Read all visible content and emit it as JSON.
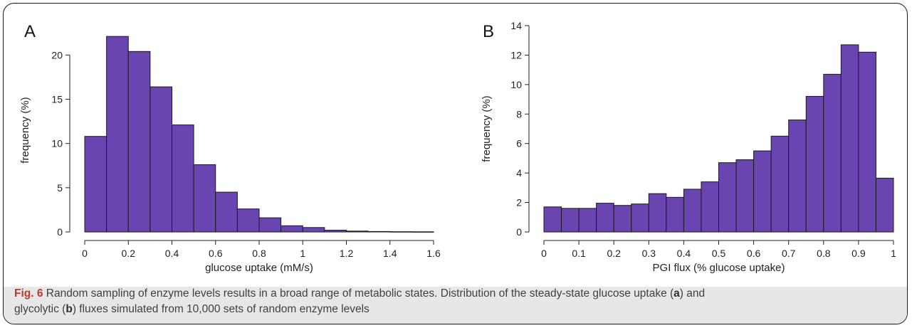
{
  "chart_data": [
    {
      "type": "bar",
      "panel_label": "A",
      "xlabel": "glucose uptake (mM/s)",
      "ylabel": "frequency (%)",
      "xlim": [
        0,
        1.6
      ],
      "ylim": [
        0,
        23
      ],
      "x_ticks": [
        "0",
        "0.2",
        "0.4",
        "0.6",
        "0.8",
        "1",
        "1.2",
        "1.4",
        "1.6"
      ],
      "y_ticks": [
        "0",
        "5",
        "10",
        "15",
        "20"
      ],
      "bin_width": 0.1,
      "bin_start": 0,
      "values": [
        10.8,
        22.1,
        20.4,
        16.4,
        12.1,
        7.6,
        4.5,
        2.6,
        1.6,
        0.7,
        0.5,
        0.2,
        0.1,
        0.05,
        0.03,
        0.02
      ],
      "color": "#6a44b0"
    },
    {
      "type": "bar",
      "panel_label": "B",
      "xlabel": "PGI flux (% glucose uptake)",
      "ylabel": "frequency (%)",
      "xlim": [
        0,
        1
      ],
      "ylim": [
        0,
        14
      ],
      "x_ticks": [
        "0",
        "0.1",
        "0.2",
        "0.3",
        "0.4",
        "0.5",
        "0.6",
        "0.7",
        "0.8",
        "0.9",
        "1"
      ],
      "y_ticks": [
        "0",
        "2",
        "4",
        "6",
        "8",
        "10",
        "12",
        "14"
      ],
      "bin_width": 0.05,
      "bin_start": 0,
      "values": [
        1.7,
        1.6,
        1.6,
        1.95,
        1.8,
        1.9,
        2.6,
        2.35,
        2.9,
        3.4,
        4.7,
        4.9,
        5.5,
        6.5,
        7.6,
        9.2,
        10.7,
        12.7,
        12.2,
        3.65
      ],
      "color": "#6a44b0"
    }
  ],
  "caption": {
    "fig_label": "Fig. 6",
    "line1": " Random sampling of enzyme levels results in a broad range of metabolic states. Distribution of the steady-state glucose uptake (",
    "a": "a",
    "mid": ") and",
    "line2a": "glycolytic (",
    "b": "b",
    "line2b": ") fluxes simulated from 10,000 sets of random enzyme levels"
  }
}
